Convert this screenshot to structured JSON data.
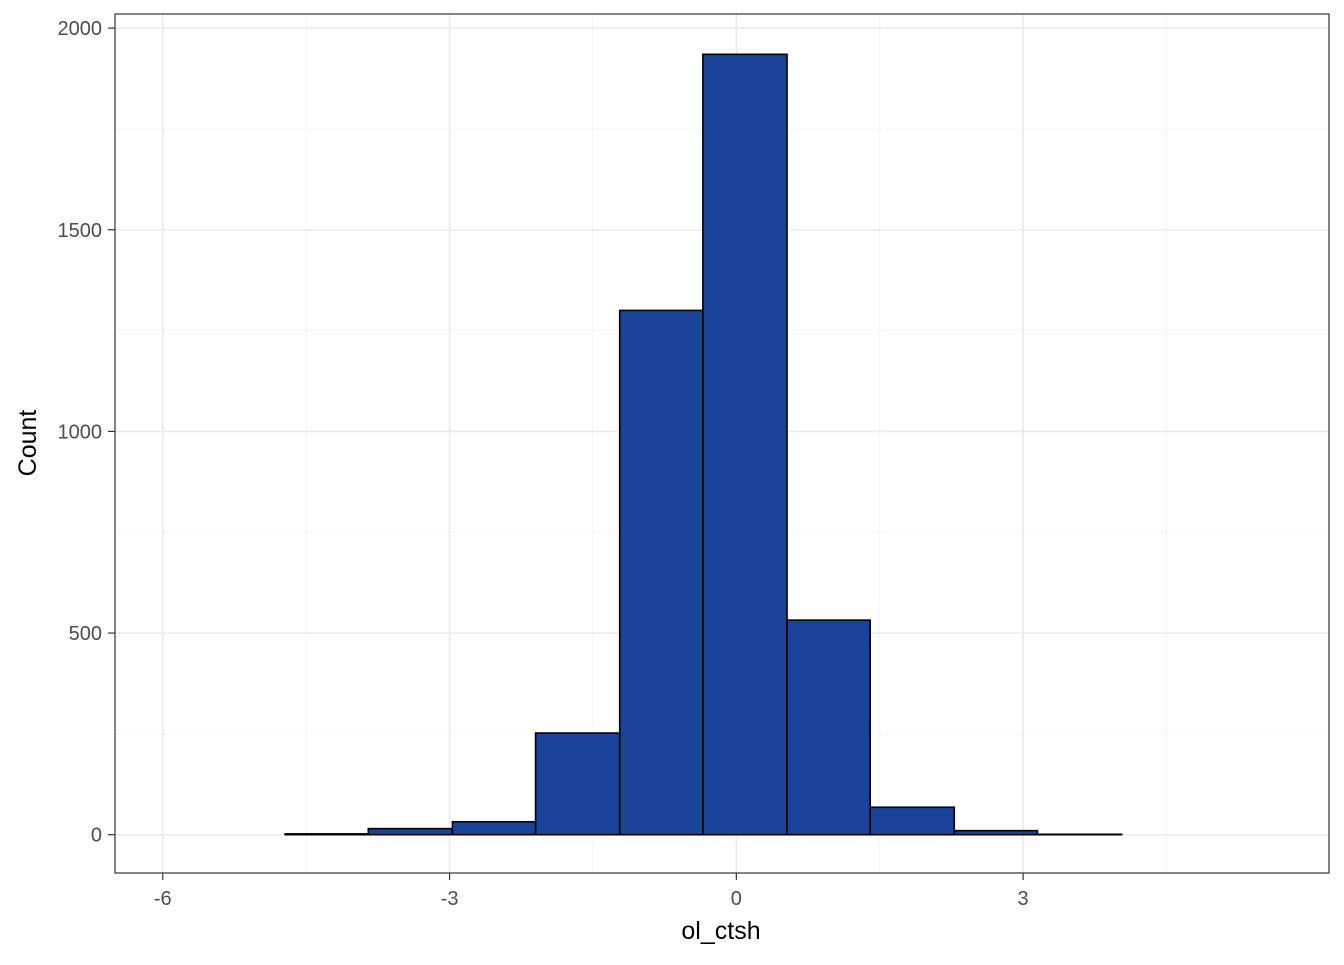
{
  "chart_data": {
    "type": "bar",
    "title": "",
    "xlabel": "ol_ctsh",
    "ylabel": "Count",
    "xlim": [
      -6.5,
      6.2
    ],
    "ylim": [
      -95,
      2035
    ],
    "x_ticks": [
      -6,
      -3,
      0,
      3
    ],
    "x_tick_labels": [
      "-6",
      "-3",
      "0",
      "3"
    ],
    "y_ticks": [
      0,
      500,
      1000,
      1500,
      2000
    ],
    "y_tick_labels": [
      "0",
      "500",
      "1000",
      "1500",
      "2000"
    ],
    "grid": true,
    "legend": "none",
    "bins": [
      {
        "x0": -5.6,
        "x1": -4.72,
        "count": 0
      },
      {
        "x0": -4.72,
        "x1": -3.85,
        "count": 2
      },
      {
        "x0": -3.85,
        "x1": -2.97,
        "count": 15
      },
      {
        "x0": -2.97,
        "x1": -2.1,
        "count": 32
      },
      {
        "x0": -2.1,
        "x1": -1.22,
        "count": 252
      },
      {
        "x0": -1.22,
        "x1": -0.35,
        "count": 1300
      },
      {
        "x0": -0.35,
        "x1": 0.53,
        "count": 1935
      },
      {
        "x0": 0.53,
        "x1": 1.4,
        "count": 532
      },
      {
        "x0": 1.4,
        "x1": 2.28,
        "count": 68
      },
      {
        "x0": 2.28,
        "x1": 3.15,
        "count": 10
      },
      {
        "x0": 3.15,
        "x1": 4.03,
        "count": 1
      },
      {
        "x0": 4.03,
        "x1": 4.9,
        "count": 0
      }
    ],
    "colors": {
      "bar_fill": "#1a4499",
      "bar_outline": "#000000",
      "panel_border": "#333333",
      "grid_major": "#ebebeb",
      "grid_minor": "#f5f5f5",
      "tick_label": "#4d4d4d"
    }
  }
}
